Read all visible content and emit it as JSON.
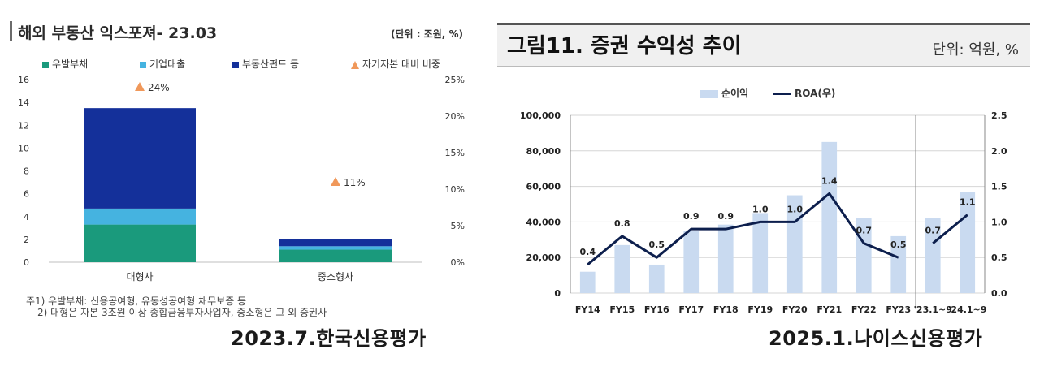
{
  "left": {
    "title": "해외 부동산 익스포져- 23.03",
    "unit": "(단위 : 조원, %)",
    "footnotes": [
      "주1) 우발부채: 신용공여형, 유동성공여형 채무보증 등",
      "2) 대형은 자본 3조원 이상 종합금융투자사업자, 중소형은 그 외 증권사"
    ],
    "caption": "2023.7.한국신용평가"
  },
  "right": {
    "title": "그림11. 증권 수익성 추이",
    "unit": "단위: 억원, %",
    "caption": "2025.1.나이스신용평가"
  },
  "chart_data": [
    {
      "type": "bar",
      "stacked": true,
      "title": "해외 부동산 익스포져- 23.03",
      "categories": [
        "대형사",
        "중소형사"
      ],
      "series": [
        {
          "name": "우발부채",
          "values": [
            3.3,
            1.1
          ],
          "color": "#1a9a7c"
        },
        {
          "name": "기업대출",
          "values": [
            1.4,
            0.3
          ],
          "color": "#45b3e0"
        },
        {
          "name": "부동산펀드 등",
          "values": [
            8.8,
            0.6
          ],
          "color": "#14309a"
        }
      ],
      "secondary_series": {
        "name": "자기자본 대비 비중",
        "type": "scatter",
        "marker": "triangle",
        "values": [
          24,
          11
        ],
        "labels": [
          "24%",
          "11%"
        ],
        "color": "#f0985a"
      },
      "y_ticks": [
        "0",
        "2",
        "4",
        "6",
        "8",
        "10",
        "12",
        "14",
        "16"
      ],
      "y2_ticks": [
        "0%",
        "5%",
        "10%",
        "15%",
        "20%",
        "25%"
      ],
      "ylim": [
        0,
        16
      ],
      "y2lim": [
        0,
        25
      ],
      "legend_position": "top"
    },
    {
      "type": "bar+line",
      "title": "그림11. 증권 수익성 추이",
      "categories": [
        "FY14",
        "FY15",
        "FY16",
        "FY17",
        "FY18",
        "FY19",
        "FY20",
        "FY21",
        "FY22",
        "FY23",
        "'23.1~9",
        "'24.1~9"
      ],
      "bar_series": {
        "name": "순이익",
        "values": [
          12000,
          27000,
          16000,
          35000,
          38500,
          45000,
          55000,
          85000,
          42000,
          32000,
          42000,
          57000
        ],
        "color": "#c9daf0"
      },
      "line_series": {
        "name": "ROA(우)",
        "values": [
          0.4,
          0.8,
          0.5,
          0.9,
          0.9,
          1.0,
          1.0,
          1.4,
          0.7,
          0.5,
          0.7,
          1.1
        ],
        "labels": [
          "0.4",
          "0.8",
          "0.5",
          "0.9",
          "0.9",
          "1.0",
          "1.0",
          "1.4",
          "0.7",
          "0.5",
          "0.7",
          "1.1"
        ],
        "segments": [
          [
            0,
            9
          ],
          [
            10,
            11
          ]
        ],
        "color": "#0d1f4d"
      },
      "y_ticks": [
        "0",
        "20,000",
        "40,000",
        "60,000",
        "80,000",
        "100,000"
      ],
      "y2_ticks": [
        "0.0",
        "0.5",
        "1.0",
        "1.5",
        "2.0",
        "2.5"
      ],
      "ylim": [
        0,
        100000
      ],
      "y2lim": [
        0,
        2.5
      ],
      "divider_after_index": 9,
      "grid": true,
      "legend_position": "top"
    }
  ]
}
